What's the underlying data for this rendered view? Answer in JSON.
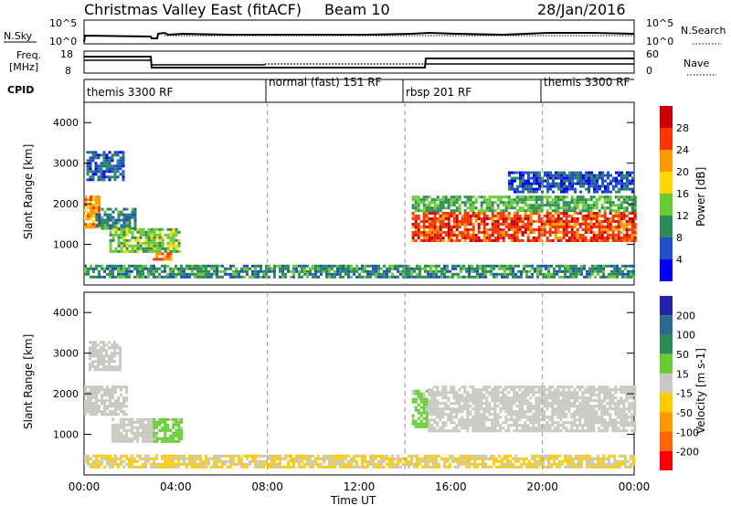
{
  "header": {
    "site": "Christmas Valley East (fitACF)",
    "beam": "Beam 10",
    "date": "28/Jan/2016"
  },
  "nsky_panel": {
    "left_label": "N.Sky",
    "left_ticks": [
      "10^5",
      "10^0"
    ],
    "right_label": "N.Search",
    "right_ticks": [
      "10^5",
      "10^0"
    ]
  },
  "freq_panel": {
    "left_label_1": "Freq.",
    "left_label_2": "[MHz]",
    "left_ticks": [
      "18",
      "8"
    ],
    "right_label": "Nave",
    "right_ticks": [
      "60",
      "0"
    ]
  },
  "cpid": {
    "label": "CPID",
    "segments": [
      {
        "name": "themis 3300 RF",
        "start_hour": 0
      },
      {
        "name": "normal (fast) 151 RF",
        "start_hour": 8
      },
      {
        "name": "rbsp 201 RF",
        "start_hour": 14
      },
      {
        "name": "themis 3300 RF",
        "start_hour": 20
      }
    ]
  },
  "x_axis": {
    "label": "Time UT",
    "ticks": [
      "00:00",
      "04:00",
      "08:00",
      "12:00",
      "16:00",
      "20:00",
      "00:00"
    ]
  },
  "colors": {
    "power_scale": [
      "#0000ff",
      "#1f4fcc",
      "#2e8b57",
      "#66cc33",
      "#ffd700",
      "#ff9900",
      "#ff3300",
      "#cc0000"
    ],
    "velocity_scale": [
      "#2222aa",
      "#2a6a8a",
      "#2e8b57",
      "#66cc33",
      "#c8c8c0",
      "#ffcc00",
      "#ff9900",
      "#ff6600",
      "#ff0000"
    ]
  },
  "chart_data": [
    {
      "type": "heatmap",
      "name": "power-panel",
      "ylabel": "Slant Range [km]",
      "y_ticks": [
        "1000",
        "2000",
        "3000",
        "4000"
      ],
      "ylim": [
        0,
        4500
      ],
      "xlim_hours": [
        0,
        24
      ],
      "colorbar": {
        "label": "Power [dB]",
        "ticks": [
          "4",
          "8",
          "12",
          "16",
          "20",
          "24",
          "28"
        ],
        "range": [
          0,
          32
        ]
      },
      "regions": [
        {
          "t0": 0.0,
          "t1": 0.6,
          "r0": 1400,
          "r1": 2200,
          "value": 22
        },
        {
          "t0": 0.1,
          "t1": 1.7,
          "r0": 2600,
          "r1": 3300,
          "value": 7
        },
        {
          "t0": 0.5,
          "t1": 2.2,
          "r0": 1400,
          "r1": 1900,
          "value": 9
        },
        {
          "t0": 1.1,
          "t1": 4.2,
          "r0": 800,
          "r1": 1400,
          "value": 14
        },
        {
          "t0": 3.0,
          "t1": 3.8,
          "r0": 600,
          "r1": 800,
          "value": 24
        },
        {
          "t0": 14.3,
          "t1": 24.0,
          "r0": 1100,
          "r1": 1800,
          "value": 26
        },
        {
          "t0": 14.3,
          "t1": 24.0,
          "r0": 1800,
          "r1": 2200,
          "value": 12
        },
        {
          "t0": 18.5,
          "t1": 24.0,
          "r0": 2300,
          "r1": 2800,
          "value": 6
        },
        {
          "t0": 0.0,
          "t1": 24.0,
          "r0": 200,
          "r1": 500,
          "value": 10
        }
      ]
    },
    {
      "type": "heatmap",
      "name": "velocity-panel",
      "ylabel": "Slant Range [km]",
      "y_ticks": [
        "1000",
        "2000",
        "3000",
        "4000"
      ],
      "ylim": [
        0,
        4500
      ],
      "xlim_hours": [
        0,
        24
      ],
      "colorbar": {
        "label": "Velocity [m s-1]",
        "ticks": [
          "200",
          "100",
          "50",
          "15",
          "-15",
          "-50",
          "-100",
          "-200"
        ],
        "range": [
          -250,
          250
        ]
      },
      "regions": [
        {
          "t0": 0.0,
          "t1": 1.8,
          "r0": 1500,
          "r1": 2200,
          "value": 0
        },
        {
          "t0": 0.2,
          "t1": 1.6,
          "r0": 2600,
          "r1": 3300,
          "value": 0
        },
        {
          "t0": 1.2,
          "t1": 3.0,
          "r0": 800,
          "r1": 1400,
          "value": 0
        },
        {
          "t0": 3.0,
          "t1": 4.3,
          "r0": 800,
          "r1": 1400,
          "value": 40
        },
        {
          "t0": 14.3,
          "t1": 15.0,
          "r0": 1200,
          "r1": 2100,
          "value": 40
        },
        {
          "t0": 15.0,
          "t1": 24.0,
          "r0": 1100,
          "r1": 2200,
          "value": 0
        },
        {
          "t0": 0.0,
          "t1": 24.0,
          "r0": 200,
          "r1": 500,
          "value": -30
        }
      ]
    }
  ]
}
